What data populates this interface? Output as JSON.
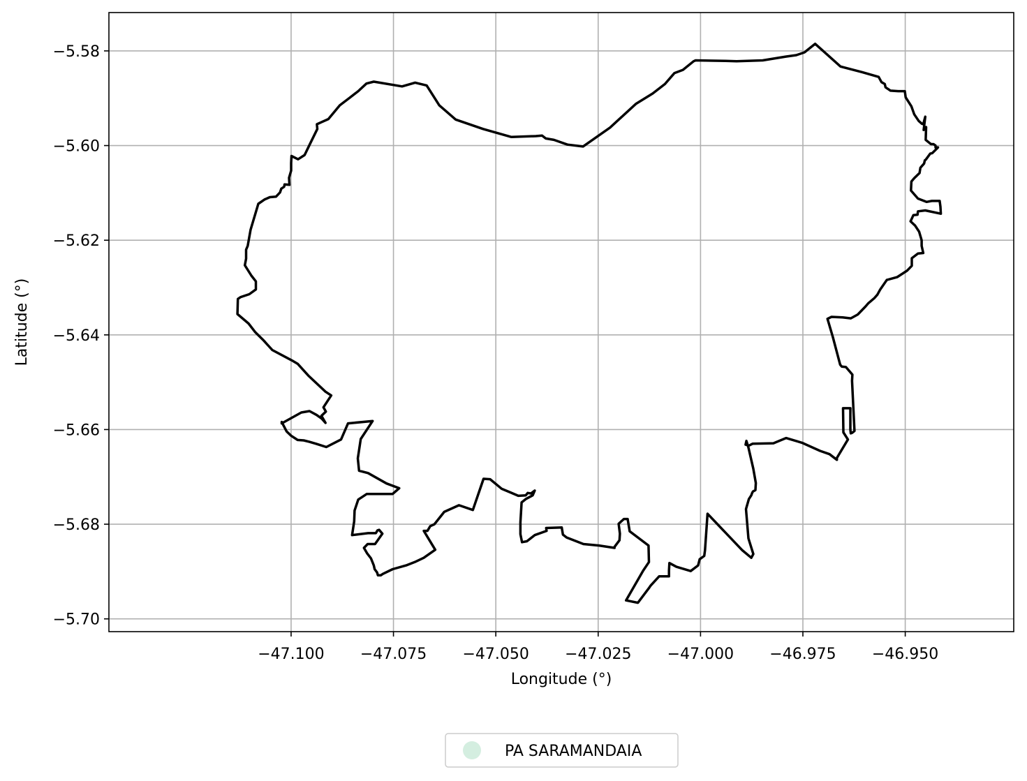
{
  "chart_data": {
    "type": "map",
    "xlabel": "Longitude (°)",
    "ylabel": "Latitude (°)",
    "xlim": [
      -47.1445,
      -46.9235
    ],
    "ylim": [
      -5.7027,
      -5.5719
    ],
    "x_ticks": [
      -47.1,
      -47.075,
      -47.05,
      -47.025,
      -47.0,
      -46.975,
      -46.95
    ],
    "x_tick_labels": [
      "−47.100",
      "−47.075",
      "−47.050",
      "−47.025",
      "−47.000",
      "−46.975",
      "−46.950"
    ],
    "y_ticks": [
      -5.58,
      -5.6,
      -5.62,
      -5.64,
      -5.66,
      -5.68,
      -5.7
    ],
    "y_tick_labels": [
      "−5.58",
      "−5.60",
      "−5.62",
      "−5.64",
      "−5.66",
      "−5.68",
      "−5.70"
    ],
    "grid": true,
    "legend": {
      "placement": "bottom-center, below plot",
      "entries": [
        {
          "label": "PA SARAMANDAIA",
          "color": "#d4eee0",
          "marker": "circle"
        }
      ]
    },
    "boundary_color": "#000000",
    "boundary": [
      [
        -47.0798,
        -5.5865
      ],
      [
        -47.0729,
        -5.5875
      ],
      [
        -47.0697,
        -5.5867
      ],
      [
        -47.0669,
        -5.5873
      ],
      [
        -47.0638,
        -5.5915
      ],
      [
        -47.0598,
        -5.5945
      ],
      [
        -47.0531,
        -5.5965
      ],
      [
        -47.0462,
        -5.5982
      ],
      [
        -47.0402,
        -5.598
      ],
      [
        -47.0387,
        -5.5979
      ],
      [
        -47.0378,
        -5.5985
      ],
      [
        -47.0358,
        -5.5988
      ],
      [
        -47.0325,
        -5.5998
      ],
      [
        -47.0287,
        -5.6002
      ],
      [
        -47.0221,
        -5.5962
      ],
      [
        -47.0158,
        -5.5912
      ],
      [
        -47.0117,
        -5.589
      ],
      [
        -47.0087,
        -5.587
      ],
      [
        -47.0064,
        -5.5847
      ],
      [
        -47.0043,
        -5.584
      ],
      [
        -47.0017,
        -5.5822
      ],
      [
        -47.0012,
        -5.582
      ],
      [
        -46.9939,
        -5.5821
      ],
      [
        -46.9912,
        -5.5822
      ],
      [
        -46.9848,
        -5.582
      ],
      [
        -46.9792,
        -5.5812
      ],
      [
        -46.9766,
        -5.5809
      ],
      [
        -46.9746,
        -5.5803
      ],
      [
        -46.972,
        -5.5785
      ],
      [
        -46.9658,
        -5.5833
      ],
      [
        -46.9605,
        -5.5845
      ],
      [
        -46.9565,
        -5.5855
      ],
      [
        -46.9558,
        -5.5866
      ],
      [
        -46.955,
        -5.587
      ],
      [
        -46.9548,
        -5.5877
      ],
      [
        -46.9536,
        -5.5884
      ],
      [
        -46.9517,
        -5.5885
      ],
      [
        -46.9501,
        -5.5885
      ],
      [
        -46.9499,
        -5.5898
      ],
      [
        -46.9485,
        -5.5917
      ],
      [
        -46.9478,
        -5.5934
      ],
      [
        -46.9467,
        -5.5948
      ],
      [
        -46.9459,
        -5.5954
      ],
      [
        -46.9456,
        -5.5955
      ],
      [
        -46.9451,
        -5.5939
      ],
      [
        -46.9455,
        -5.5967
      ],
      [
        -46.9449,
        -5.5961
      ],
      [
        -46.945,
        -5.5988
      ],
      [
        -46.944,
        -5.5995
      ],
      [
        -46.9437,
        -5.5997
      ],
      [
        -46.9431,
        -5.5997
      ],
      [
        -46.9426,
        -5.6
      ],
      [
        -46.9426,
        -5.6004
      ],
      [
        -46.942,
        -5.6004
      ],
      [
        -46.9434,
        -5.6016
      ],
      [
        -46.9439,
        -5.6017
      ],
      [
        -46.945,
        -5.603
      ],
      [
        -46.9452,
        -5.6031
      ],
      [
        -46.9454,
        -5.6038
      ],
      [
        -46.9463,
        -5.6047
      ],
      [
        -46.9465,
        -5.6058
      ],
      [
        -46.9478,
        -5.6069
      ],
      [
        -46.9485,
        -5.6076
      ],
      [
        -46.9486,
        -5.6095
      ],
      [
        -46.9469,
        -5.6112
      ],
      [
        -46.9448,
        -5.6119
      ],
      [
        -46.9435,
        -5.6117
      ],
      [
        -46.9416,
        -5.6117
      ],
      [
        -46.9414,
        -5.6129
      ],
      [
        -46.9413,
        -5.6144
      ],
      [
        -46.9451,
        -5.6137
      ],
      [
        -46.9469,
        -5.6139
      ],
      [
        -46.947,
        -5.6146
      ],
      [
        -46.948,
        -5.6147
      ],
      [
        -46.9487,
        -5.616
      ],
      [
        -46.9476,
        -5.6169
      ],
      [
        -46.9466,
        -5.6182
      ],
      [
        -46.946,
        -5.62
      ],
      [
        -46.946,
        -5.6212
      ],
      [
        -46.9456,
        -5.6227
      ],
      [
        -46.9469,
        -5.6228
      ],
      [
        -46.9484,
        -5.6238
      ],
      [
        -46.9484,
        -5.6254
      ],
      [
        -46.9495,
        -5.6264
      ],
      [
        -46.952,
        -5.6278
      ],
      [
        -46.9545,
        -5.6284
      ],
      [
        -46.9561,
        -5.6304
      ],
      [
        -46.9568,
        -5.6315
      ],
      [
        -46.9575,
        -5.6322
      ],
      [
        -46.959,
        -5.6333
      ],
      [
        -46.9597,
        -5.634
      ],
      [
        -46.9616,
        -5.6357
      ],
      [
        -46.9633,
        -5.6365
      ],
      [
        -46.9653,
        -5.6363
      ],
      [
        -46.968,
        -5.6362
      ],
      [
        -46.969,
        -5.6366
      ],
      [
        -46.9677,
        -5.6404
      ],
      [
        -46.9659,
        -5.6463
      ],
      [
        -46.9655,
        -5.6467
      ],
      [
        -46.9645,
        -5.6468
      ],
      [
        -46.9629,
        -5.6484
      ],
      [
        -46.963,
        -5.6497
      ],
      [
        -46.9624,
        -5.6603
      ],
      [
        -46.963,
        -5.6607
      ],
      [
        -46.9633,
        -5.6608
      ],
      [
        -46.9634,
        -5.66
      ],
      [
        -46.9634,
        -5.6555
      ],
      [
        -46.9652,
        -5.6555
      ],
      [
        -46.9651,
        -5.6606
      ],
      [
        -46.964,
        -5.6621
      ],
      [
        -46.9667,
        -5.666
      ],
      [
        -46.9667,
        -5.6664
      ],
      [
        -46.9685,
        -5.6652
      ],
      [
        -46.9708,
        -5.6645
      ],
      [
        -46.9752,
        -5.6628
      ],
      [
        -46.9791,
        -5.6618
      ],
      [
        -46.9822,
        -5.6629
      ],
      [
        -46.9873,
        -5.663
      ],
      [
        -46.9882,
        -5.6634
      ],
      [
        -46.989,
        -5.6632
      ],
      [
        -46.9888,
        -5.6624
      ],
      [
        -46.9883,
        -5.6638
      ],
      [
        -46.9871,
        -5.6683
      ],
      [
        -46.9865,
        -5.6713
      ],
      [
        -46.9866,
        -5.6728
      ],
      [
        -46.9872,
        -5.6731
      ],
      [
        -46.9874,
        -5.6734
      ],
      [
        -46.9876,
        -5.6739
      ],
      [
        -46.9882,
        -5.6747
      ],
      [
        -46.9889,
        -5.6768
      ],
      [
        -46.9883,
        -5.683
      ],
      [
        -46.9871,
        -5.6863
      ],
      [
        -46.9876,
        -5.6871
      ],
      [
        -46.9898,
        -5.6855
      ],
      [
        -46.994,
        -5.6817
      ],
      [
        -46.9983,
        -5.6778
      ],
      [
        -46.9989,
        -5.6855
      ],
      [
        -46.9991,
        -5.6867
      ],
      [
        -47.0002,
        -5.6874
      ],
      [
        -47.0006,
        -5.6887
      ],
      [
        -47.0024,
        -5.6899
      ],
      [
        -47.0059,
        -5.689
      ],
      [
        -47.0076,
        -5.6882
      ],
      [
        -47.0077,
        -5.6898
      ],
      [
        -47.0077,
        -5.691
      ],
      [
        -47.0101,
        -5.691
      ],
      [
        -47.0122,
        -5.693
      ],
      [
        -47.0126,
        -5.6935
      ],
      [
        -47.0153,
        -5.6966
      ],
      [
        -47.0182,
        -5.6961
      ],
      [
        -47.014,
        -5.6898
      ],
      [
        -47.0126,
        -5.688
      ],
      [
        -47.0127,
        -5.6845
      ],
      [
        -47.0173,
        -5.6815
      ],
      [
        -47.0178,
        -5.6789
      ],
      [
        -47.0187,
        -5.6789
      ],
      [
        -47.02,
        -5.6799
      ],
      [
        -47.0197,
        -5.682
      ],
      [
        -47.0198,
        -5.6834
      ],
      [
        -47.021,
        -5.6848
      ],
      [
        -47.021,
        -5.685
      ],
      [
        -47.0248,
        -5.6845
      ],
      [
        -47.0286,
        -5.6842
      ],
      [
        -47.0327,
        -5.6828
      ],
      [
        -47.0336,
        -5.6822
      ],
      [
        -47.0339,
        -5.6807
      ],
      [
        -47.0377,
        -5.6808
      ],
      [
        -47.0376,
        -5.6814
      ],
      [
        -47.0405,
        -5.6823
      ],
      [
        -47.0424,
        -5.6836
      ],
      [
        -47.0436,
        -5.6838
      ],
      [
        -47.044,
        -5.6821
      ],
      [
        -47.044,
        -5.6796
      ],
      [
        -47.0437,
        -5.6754
      ],
      [
        -47.0427,
        -5.6747
      ],
      [
        -47.041,
        -5.6739
      ],
      [
        -47.0405,
        -5.6729
      ],
      [
        -47.0414,
        -5.6735
      ],
      [
        -47.0422,
        -5.6734
      ],
      [
        -47.0427,
        -5.6739
      ],
      [
        -47.0445,
        -5.674
      ],
      [
        -47.0464,
        -5.6733
      ],
      [
        -47.0486,
        -5.6725
      ],
      [
        -47.0514,
        -5.6705
      ],
      [
        -47.053,
        -5.6704
      ],
      [
        -47.0556,
        -5.677
      ],
      [
        -47.059,
        -5.676
      ],
      [
        -47.0626,
        -5.6774
      ],
      [
        -47.065,
        -5.68
      ],
      [
        -47.066,
        -5.6804
      ],
      [
        -47.0667,
        -5.6814
      ],
      [
        -47.0676,
        -5.6814
      ],
      [
        -47.0648,
        -5.6854
      ],
      [
        -47.0658,
        -5.686
      ],
      [
        -47.0676,
        -5.6871
      ],
      [
        -47.0698,
        -5.688
      ],
      [
        -47.0719,
        -5.6887
      ],
      [
        -47.0752,
        -5.6895
      ],
      [
        -47.0776,
        -5.6905
      ],
      [
        -47.0781,
        -5.6908
      ],
      [
        -47.0788,
        -5.6908
      ],
      [
        -47.079,
        -5.6902
      ],
      [
        -47.0796,
        -5.6895
      ],
      [
        -47.0798,
        -5.6887
      ],
      [
        -47.0805,
        -5.6872
      ],
      [
        -47.0814,
        -5.6862
      ],
      [
        -47.0822,
        -5.685
      ],
      [
        -47.0813,
        -5.6842
      ],
      [
        -47.0795,
        -5.6842
      ],
      [
        -47.0777,
        -5.682
      ],
      [
        -47.0785,
        -5.6812
      ],
      [
        -47.0789,
        -5.6813
      ],
      [
        -47.0793,
        -5.6819
      ],
      [
        -47.0812,
        -5.6819
      ],
      [
        -47.0851,
        -5.6823
      ],
      [
        -47.0846,
        -5.6794
      ],
      [
        -47.0845,
        -5.6771
      ],
      [
        -47.0836,
        -5.6748
      ],
      [
        -47.0815,
        -5.6736
      ],
      [
        -47.0786,
        -5.6736
      ],
      [
        -47.0752,
        -5.6736
      ],
      [
        -47.0736,
        -5.6724
      ],
      [
        -47.0767,
        -5.6714
      ],
      [
        -47.0812,
        -5.6692
      ],
      [
        -47.0834,
        -5.6687
      ],
      [
        -47.0837,
        -5.6661
      ],
      [
        -47.083,
        -5.662
      ],
      [
        -47.0801,
        -5.6582
      ],
      [
        -47.0861,
        -5.6587
      ],
      [
        -47.0878,
        -5.6621
      ],
      [
        -47.0914,
        -5.6637
      ],
      [
        -47.0939,
        -5.663
      ],
      [
        -47.0955,
        -5.6626
      ],
      [
        -47.0969,
        -5.6623
      ],
      [
        -47.0984,
        -5.6622
      ],
      [
        -47.1,
        -5.6613
      ],
      [
        -47.1011,
        -5.6604
      ],
      [
        -47.1023,
        -5.6584
      ],
      [
        -47.1023,
        -5.6587
      ],
      [
        -47.0975,
        -5.6564
      ],
      [
        -47.0955,
        -5.6561
      ],
      [
        -47.0938,
        -5.6569
      ],
      [
        -47.0925,
        -5.6577
      ],
      [
        -47.0916,
        -5.6586
      ],
      [
        -47.0926,
        -5.6571
      ],
      [
        -47.0915,
        -5.6562
      ],
      [
        -47.0921,
        -5.6553
      ],
      [
        -47.0902,
        -5.6528
      ],
      [
        -47.0916,
        -5.652
      ],
      [
        -47.0958,
        -5.6486
      ],
      [
        -47.0984,
        -5.6461
      ],
      [
        -47.0998,
        -5.6454
      ],
      [
        -47.1046,
        -5.6432
      ],
      [
        -47.1067,
        -5.6412
      ],
      [
        -47.1088,
        -5.6394
      ],
      [
        -47.1104,
        -5.6376
      ],
      [
        -47.1131,
        -5.6356
      ],
      [
        -47.113,
        -5.6324
      ],
      [
        -47.1123,
        -5.632
      ],
      [
        -47.1102,
        -5.6314
      ],
      [
        -47.1086,
        -5.6304
      ],
      [
        -47.1086,
        -5.6287
      ],
      [
        -47.1097,
        -5.6275
      ],
      [
        -47.1113,
        -5.6253
      ],
      [
        -47.111,
        -5.6239
      ],
      [
        -47.111,
        -5.622
      ],
      [
        -47.1106,
        -5.6212
      ],
      [
        -47.1099,
        -5.6178
      ],
      [
        -47.108,
        -5.6123
      ],
      [
        -47.1065,
        -5.6114
      ],
      [
        -47.1052,
        -5.6109
      ],
      [
        -47.1037,
        -5.6108
      ],
      [
        -47.1027,
        -5.6099
      ],
      [
        -47.1024,
        -5.6091
      ],
      [
        -47.1017,
        -5.6087
      ],
      [
        -47.1016,
        -5.6082
      ],
      [
        -47.1004,
        -5.6083
      ],
      [
        -47.1005,
        -5.6068
      ],
      [
        -47.1,
        -5.6053
      ],
      [
        -47.1,
        -5.6037
      ],
      [
        -47.0999,
        -5.6022
      ],
      [
        -47.0983,
        -5.6029
      ],
      [
        -47.0967,
        -5.602
      ],
      [
        -47.0953,
        -5.5995
      ],
      [
        -47.0936,
        -5.5965
      ],
      [
        -47.0937,
        -5.5955
      ],
      [
        -47.0927,
        -5.5951
      ],
      [
        -47.0909,
        -5.5944
      ],
      [
        -47.0881,
        -5.5915
      ],
      [
        -47.0857,
        -5.5899
      ],
      [
        -47.0836,
        -5.5885
      ],
      [
        -47.0816,
        -5.5869
      ],
      [
        -47.0798,
        -5.5865
      ]
    ]
  }
}
